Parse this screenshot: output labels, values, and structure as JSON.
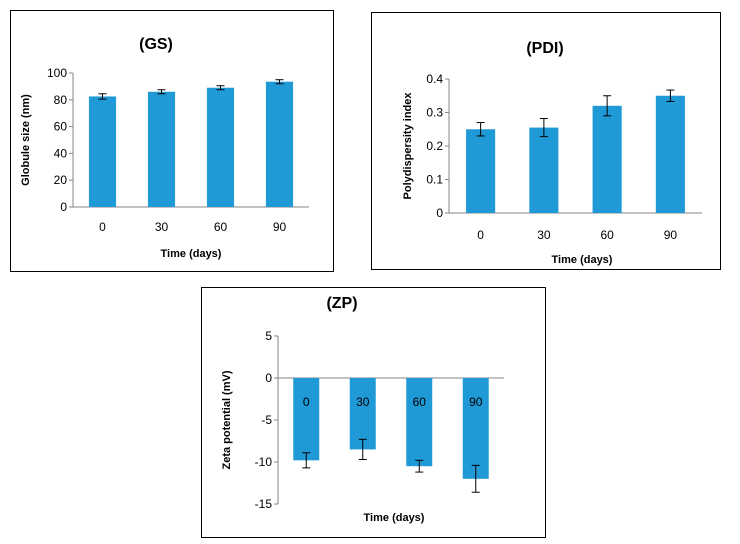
{
  "chart_data": [
    {
      "id": "gs",
      "type": "bar",
      "title": "(GS)",
      "xlabel": "Time (days)",
      "ylabel": "Globule size (nm)",
      "categories": [
        "0",
        "30",
        "60",
        "90"
      ],
      "values": [
        82.5,
        86,
        89,
        93.5
      ],
      "errors": [
        2,
        1.5,
        1.5,
        1.5
      ],
      "ylim": [
        0,
        100
      ],
      "yticks": [
        "0",
        "20",
        "40",
        "60",
        "80",
        "100"
      ],
      "bar_color": "#1f9ad6",
      "category_labels_inside_bars": false
    },
    {
      "id": "pdi",
      "type": "bar",
      "title": "(PDI)",
      "xlabel": "Time (days)",
      "ylabel": "Polydispersity index",
      "categories": [
        "0",
        "30",
        "60",
        "90"
      ],
      "values": [
        0.25,
        0.255,
        0.32,
        0.35
      ],
      "errors": [
        0.02,
        0.027,
        0.03,
        0.017
      ],
      "ylim": [
        0,
        0.4
      ],
      "yticks": [
        "0",
        "0.1",
        "0.2",
        "0.3",
        "0.4"
      ],
      "bar_color": "#1f9ad6",
      "category_labels_inside_bars": false
    },
    {
      "id": "zp",
      "type": "bar",
      "title": "(ZP)",
      "xlabel": "Time (days)",
      "ylabel": "Zeta potential (mV)",
      "categories": [
        "0",
        "30",
        "60",
        "90"
      ],
      "values": [
        -9.8,
        -8.5,
        -10.5,
        -12
      ],
      "errors": [
        0.9,
        1.2,
        0.7,
        1.6
      ],
      "ylim": [
        -15,
        5
      ],
      "yticks": [
        "5",
        "0",
        "-5",
        "-10",
        "-15"
      ],
      "bar_color": "#1f9ad6",
      "category_labels_inside_bars": true
    }
  ]
}
